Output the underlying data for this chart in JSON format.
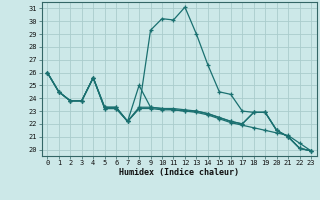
{
  "xlabel": "Humidex (Indice chaleur)",
  "bg_color": "#cce8e8",
  "grid_color": "#aacccc",
  "line_color": "#1a7070",
  "xlim": [
    -0.5,
    23.5
  ],
  "ylim": [
    19.5,
    31.5
  ],
  "xticks": [
    0,
    1,
    2,
    3,
    4,
    5,
    6,
    7,
    8,
    9,
    10,
    11,
    12,
    13,
    14,
    15,
    16,
    17,
    18,
    19,
    20,
    21,
    22,
    23
  ],
  "yticks": [
    20,
    21,
    22,
    23,
    24,
    25,
    26,
    27,
    28,
    29,
    30,
    31
  ],
  "series": [
    [
      26.0,
      24.5,
      23.8,
      23.8,
      25.6,
      23.2,
      23.2,
      22.2,
      23.2,
      23.2,
      23.1,
      23.1,
      23.0,
      23.0,
      22.8,
      22.5,
      22.2,
      22.0,
      22.9,
      22.9,
      21.5,
      21.0,
      20.1,
      19.9
    ],
    [
      26.0,
      24.5,
      23.8,
      23.8,
      25.6,
      23.2,
      23.2,
      22.2,
      23.2,
      29.3,
      30.2,
      30.1,
      31.1,
      29.0,
      26.6,
      24.5,
      24.3,
      23.0,
      22.9,
      22.9,
      21.5,
      21.0,
      20.1,
      19.9
    ],
    [
      26.0,
      24.5,
      23.8,
      23.8,
      25.6,
      23.3,
      23.3,
      22.2,
      25.0,
      23.3,
      23.2,
      23.2,
      23.1,
      23.0,
      22.8,
      22.5,
      22.2,
      22.0,
      22.9,
      22.9,
      21.5,
      21.0,
      20.1,
      19.9
    ],
    [
      26.0,
      24.5,
      23.8,
      23.8,
      25.6,
      23.3,
      23.3,
      22.2,
      23.3,
      23.3,
      23.2,
      23.1,
      23.0,
      22.9,
      22.7,
      22.4,
      22.1,
      21.9,
      21.7,
      21.5,
      21.3,
      21.1,
      20.5,
      19.9
    ]
  ]
}
